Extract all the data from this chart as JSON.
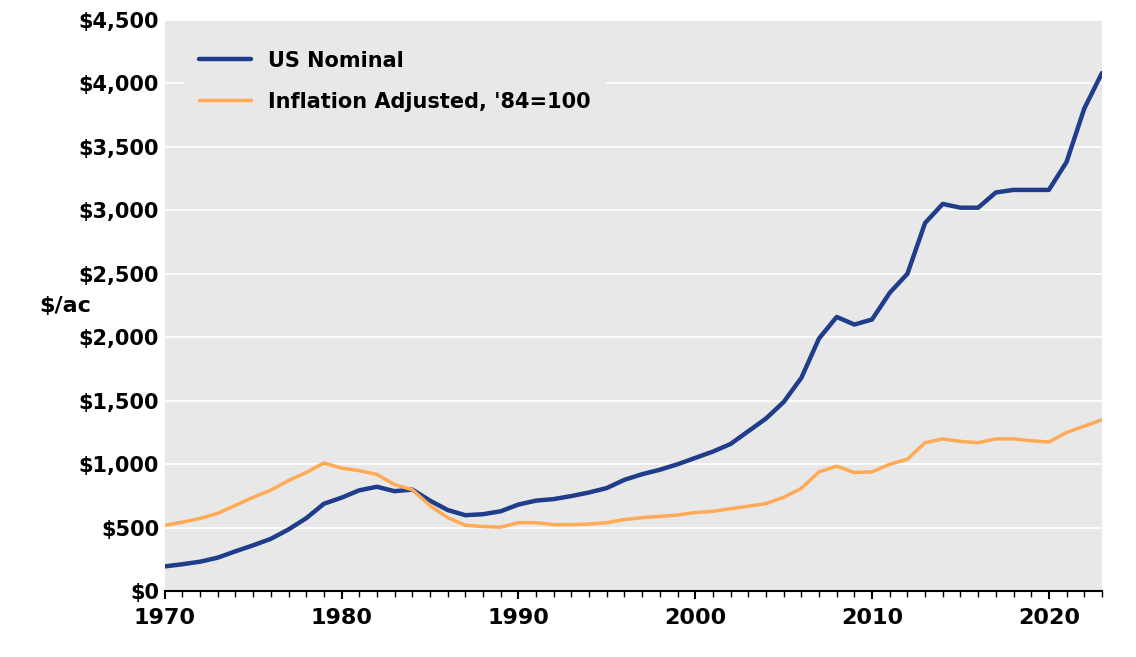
{
  "ylabel": "$/ac",
  "nominal_color": "#1F3D8A",
  "inflation_color": "#FFAA55",
  "nominal_linewidth": 3.2,
  "inflation_linewidth": 2.5,
  "legend_nominal": "US Nominal",
  "legend_inflation": "Inflation Adjusted, '84=100",
  "plot_bg_color": "#E8E8E8",
  "fig_bg_color": "#FFFFFF",
  "grid_color": "#FFFFFF",
  "ylim": [
    0,
    4500
  ],
  "yticks": [
    0,
    500,
    1000,
    1500,
    2000,
    2500,
    3000,
    3500,
    4000,
    4500
  ],
  "xlim": [
    1970,
    2023
  ],
  "xticks": [
    1970,
    1980,
    1990,
    2000,
    2010,
    2020
  ],
  "years": [
    1970,
    1971,
    1972,
    1973,
    1974,
    1975,
    1976,
    1977,
    1978,
    1979,
    1980,
    1981,
    1982,
    1983,
    1984,
    1985,
    1986,
    1987,
    1988,
    1989,
    1990,
    1991,
    1992,
    1993,
    1994,
    1995,
    1996,
    1997,
    1998,
    1999,
    2000,
    2001,
    2002,
    2003,
    2004,
    2005,
    2006,
    2007,
    2008,
    2009,
    2010,
    2011,
    2012,
    2013,
    2014,
    2015,
    2016,
    2017,
    2018,
    2019,
    2020,
    2021,
    2022,
    2023
  ],
  "nominal": [
    196,
    213,
    233,
    265,
    315,
    362,
    413,
    487,
    575,
    689,
    737,
    795,
    823,
    788,
    801,
    714,
    640,
    599,
    607,
    630,
    683,
    714,
    726,
    750,
    778,
    813,
    878,
    922,
    957,
    1000,
    1050,
    1100,
    1160,
    1260,
    1360,
    1490,
    1680,
    1990,
    2160,
    2100,
    2140,
    2350,
    2500,
    2900,
    3050,
    3020,
    3020,
    3140,
    3160,
    3160,
    3160,
    3380,
    3800,
    4080
  ],
  "inflation_adj": [
    519,
    545,
    574,
    614,
    677,
    740,
    796,
    872,
    935,
    1010,
    970,
    950,
    920,
    840,
    800,
    675,
    580,
    520,
    510,
    505,
    540,
    540,
    525,
    525,
    530,
    540,
    565,
    580,
    590,
    600,
    620,
    630,
    650,
    670,
    690,
    740,
    810,
    940,
    985,
    935,
    940,
    1000,
    1040,
    1170,
    1200,
    1180,
    1170,
    1200,
    1200,
    1185,
    1175,
    1250,
    1300,
    1350
  ]
}
